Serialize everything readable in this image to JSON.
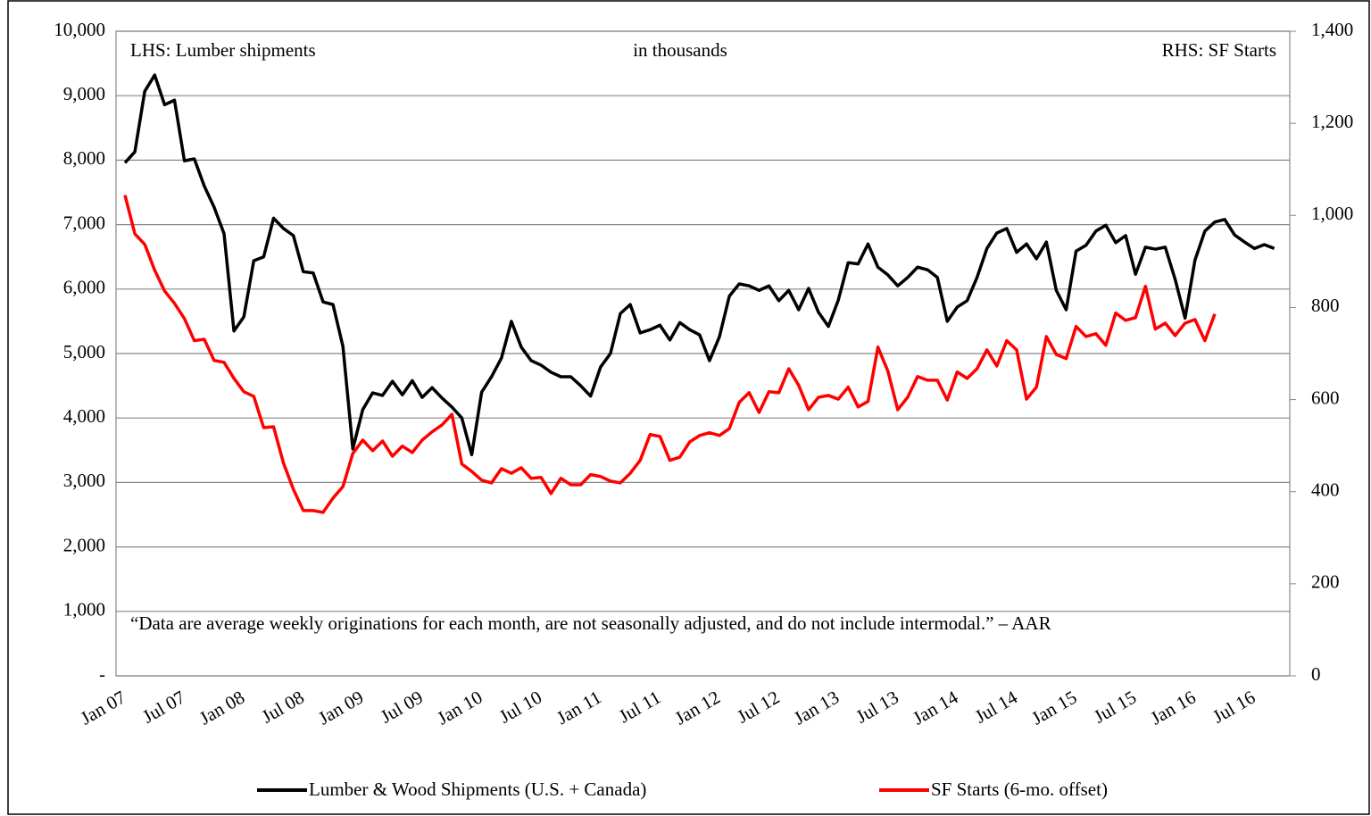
{
  "chart_data": {
    "type": "line",
    "annotations": [
      "LHS: Lumber shipments",
      "in thousands",
      "RHS: SF Starts",
      "“Data are average weekly originations for each month, are not seasonally adjusted, and do not include intermodal.” – AAR"
    ],
    "categories": [
      "Jan 07",
      null,
      null,
      null,
      null,
      null,
      "Jul 07",
      null,
      null,
      null,
      null,
      null,
      "Jan 08",
      null,
      null,
      null,
      null,
      null,
      "Jul 08",
      null,
      null,
      null,
      null,
      null,
      "Jan 09",
      null,
      null,
      null,
      null,
      null,
      "Jul 09",
      null,
      null,
      null,
      null,
      null,
      "Jan 10",
      null,
      null,
      null,
      null,
      null,
      "Jul 10",
      null,
      null,
      null,
      null,
      null,
      "Jan 11",
      null,
      null,
      null,
      null,
      null,
      "Jul 11",
      null,
      null,
      null,
      null,
      null,
      "Jan 12",
      null,
      null,
      null,
      null,
      null,
      "Jul 12",
      null,
      null,
      null,
      null,
      null,
      "Jan 13",
      null,
      null,
      null,
      null,
      null,
      "Jul 13",
      null,
      null,
      null,
      null,
      null,
      "Jan 14",
      null,
      null,
      null,
      null,
      null,
      "Jul 14",
      null,
      null,
      null,
      null,
      null,
      "Jan 15",
      null,
      null,
      null,
      null,
      null,
      "Jul 15",
      null,
      null,
      null,
      null,
      null,
      "Jan 16",
      null,
      null,
      null,
      null,
      null,
      "Jul 16",
      null,
      null
    ],
    "series": [
      {
        "name": "Lumber & Wood Shipments (U.S. + Canada)",
        "color": "#000000",
        "values": [
          7960,
          8130,
          9070,
          9320,
          8860,
          8930,
          7990,
          8020,
          7600,
          7270,
          6860,
          5350,
          5570,
          6440,
          6500,
          7100,
          6940,
          6830,
          6270,
          6250,
          5800,
          5760,
          5110,
          3520,
          4130,
          4390,
          4350,
          4570,
          4360,
          4580,
          4320,
          4470,
          4310,
          4170,
          4000,
          3430,
          4400,
          4640,
          4930,
          5500,
          5100,
          4890,
          4820,
          4710,
          4640,
          4640,
          4500,
          4340,
          4790,
          5000,
          5620,
          5760,
          5320,
          5370,
          5440,
          5210,
          5480,
          5370,
          5290,
          4890,
          5260,
          5890,
          6080,
          6050,
          5980,
          6050,
          5820,
          5980,
          5680,
          6010,
          5640,
          5420,
          5830,
          6410,
          6390,
          6700,
          6340,
          6220,
          6050,
          6180,
          6340,
          6300,
          6180,
          5500,
          5720,
          5820,
          6180,
          6630,
          6870,
          6940,
          6570,
          6700,
          6470,
          6730,
          5980,
          5680,
          6590,
          6680,
          6900,
          6990,
          6720,
          6830,
          6230,
          6650,
          6620,
          6650,
          6150,
          5550,
          6450,
          6900,
          7040,
          7080,
          6840,
          6730,
          6630,
          6690,
          6630
        ]
      },
      {
        "name": "SF Starts (6-mo. offset)",
        "color": "#ff0000",
        "axis": "y2",
        "values": [
          1044,
          960,
          937,
          881,
          836,
          809,
          776,
          728,
          731,
          685,
          681,
          646,
          617,
          607,
          539,
          541,
          462,
          405,
          359,
          359,
          355,
          386,
          411,
          483,
          512,
          489,
          510,
          477,
          499,
          485,
          512,
          530,
          545,
          568,
          460,
          444,
          425,
          419,
          450,
          440,
          452,
          429,
          431,
          396,
          429,
          415,
          415,
          437,
          433,
          423,
          419,
          440,
          468,
          524,
          520,
          468,
          475,
          508,
          522,
          528,
          522,
          537,
          594,
          615,
          572,
          617,
          615,
          667,
          631,
          578,
          605,
          609,
          601,
          627,
          584,
          596,
          714,
          662,
          578,
          605,
          650,
          642,
          642,
          599,
          660,
          646,
          667,
          708,
          673,
          728,
          708,
          601,
          627,
          737,
          698,
          689,
          759,
          737,
          743,
          718,
          788,
          772,
          778,
          846,
          753,
          766,
          739,
          766,
          774,
          728,
          786,
          null,
          null,
          null,
          null,
          null,
          null
        ]
      }
    ],
    "ylim": [
      0,
      10000
    ],
    "yticks": [
      {
        "value": 0,
        "label": "-"
      },
      {
        "value": 1000,
        "label": "1,000"
      },
      {
        "value": 2000,
        "label": "2,000"
      },
      {
        "value": 3000,
        "label": "3,000"
      },
      {
        "value": 4000,
        "label": "4,000"
      },
      {
        "value": 5000,
        "label": "5,000"
      },
      {
        "value": 6000,
        "label": "6,000"
      },
      {
        "value": 7000,
        "label": "7,000"
      },
      {
        "value": 8000,
        "label": "8,000"
      },
      {
        "value": 9000,
        "label": "9,000"
      },
      {
        "value": 10000,
        "label": "10,000"
      }
    ],
    "y2lim": [
      0,
      1400
    ],
    "y2ticks": [
      0,
      200,
      400,
      600,
      800,
      {
        "value": 1000,
        "label": "1,000"
      },
      {
        "value": 1200,
        "label": "1,200"
      },
      {
        "value": 1400,
        "label": "1,400"
      }
    ],
    "grid": true,
    "legend": "bottom"
  }
}
